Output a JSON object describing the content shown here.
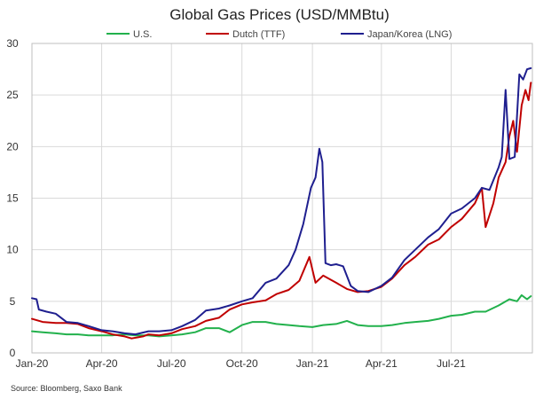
{
  "chart_data": {
    "type": "line",
    "title": "Global Gas Prices (USD/MMBtu)",
    "xlabel": "",
    "ylabel": "",
    "source": "Source: Bloomberg, Saxo Bank",
    "ylim": [
      0,
      30
    ],
    "yticks": [
      "0",
      "5",
      "10",
      "15",
      "20",
      "25",
      "30"
    ],
    "xlim": [
      "2020-01-01",
      "2021-10-15"
    ],
    "xticks": [
      {
        "date": "2020-01-01",
        "label": "Jan-20"
      },
      {
        "date": "2020-04-01",
        "label": "Apr-20"
      },
      {
        "date": "2020-07-01",
        "label": "Jul-20"
      },
      {
        "date": "2020-10-01",
        "label": "Oct-20"
      },
      {
        "date": "2021-01-01",
        "label": "Jan-21"
      },
      {
        "date": "2021-04-01",
        "label": "Apr-21"
      },
      {
        "date": "2021-07-01",
        "label": "Jul-21"
      }
    ],
    "grid": true,
    "legend": "top",
    "series": [
      {
        "name": "U.S.",
        "color": "#22b14c",
        "points": [
          [
            "2020-01-01",
            2.1
          ],
          [
            "2020-01-15",
            2.0
          ],
          [
            "2020-02-01",
            1.9
          ],
          [
            "2020-02-15",
            1.8
          ],
          [
            "2020-03-01",
            1.8
          ],
          [
            "2020-03-15",
            1.7
          ],
          [
            "2020-04-01",
            1.7
          ],
          [
            "2020-04-15",
            1.7
          ],
          [
            "2020-05-01",
            1.8
          ],
          [
            "2020-05-15",
            1.7
          ],
          [
            "2020-06-01",
            1.7
          ],
          [
            "2020-06-15",
            1.6
          ],
          [
            "2020-07-01",
            1.7
          ],
          [
            "2020-07-15",
            1.8
          ],
          [
            "2020-08-01",
            2.0
          ],
          [
            "2020-08-15",
            2.4
          ],
          [
            "2020-09-01",
            2.4
          ],
          [
            "2020-09-15",
            2.0
          ],
          [
            "2020-10-01",
            2.7
          ],
          [
            "2020-10-15",
            3.0
          ],
          [
            "2020-11-01",
            3.0
          ],
          [
            "2020-11-15",
            2.8
          ],
          [
            "2020-12-01",
            2.7
          ],
          [
            "2020-12-15",
            2.6
          ],
          [
            "2021-01-01",
            2.5
          ],
          [
            "2021-01-15",
            2.7
          ],
          [
            "2021-02-01",
            2.8
          ],
          [
            "2021-02-15",
            3.1
          ],
          [
            "2021-03-01",
            2.7
          ],
          [
            "2021-03-15",
            2.6
          ],
          [
            "2021-04-01",
            2.6
          ],
          [
            "2021-04-15",
            2.7
          ],
          [
            "2021-05-01",
            2.9
          ],
          [
            "2021-05-15",
            3.0
          ],
          [
            "2021-06-01",
            3.1
          ],
          [
            "2021-06-15",
            3.3
          ],
          [
            "2021-07-01",
            3.6
          ],
          [
            "2021-07-15",
            3.7
          ],
          [
            "2021-08-01",
            4.0
          ],
          [
            "2021-08-15",
            4.0
          ],
          [
            "2021-09-01",
            4.6
          ],
          [
            "2021-09-15",
            5.2
          ],
          [
            "2021-09-25",
            5.0
          ],
          [
            "2021-10-01",
            5.6
          ],
          [
            "2021-10-08",
            5.2
          ],
          [
            "2021-10-13",
            5.5
          ]
        ]
      },
      {
        "name": "Dutch (TTF)",
        "color": "#c00000",
        "points": [
          [
            "2020-01-01",
            3.3
          ],
          [
            "2020-01-15",
            3.0
          ],
          [
            "2020-02-01",
            2.9
          ],
          [
            "2020-02-15",
            2.9
          ],
          [
            "2020-03-01",
            2.8
          ],
          [
            "2020-03-15",
            2.4
          ],
          [
            "2020-04-01",
            2.1
          ],
          [
            "2020-04-15",
            1.8
          ],
          [
            "2020-05-01",
            1.6
          ],
          [
            "2020-05-10",
            1.4
          ],
          [
            "2020-05-25",
            1.6
          ],
          [
            "2020-06-01",
            1.8
          ],
          [
            "2020-06-15",
            1.7
          ],
          [
            "2020-07-01",
            1.9
          ],
          [
            "2020-07-15",
            2.3
          ],
          [
            "2020-08-01",
            2.6
          ],
          [
            "2020-08-15",
            3.1
          ],
          [
            "2020-09-01",
            3.4
          ],
          [
            "2020-09-15",
            4.2
          ],
          [
            "2020-10-01",
            4.7
          ],
          [
            "2020-10-15",
            4.9
          ],
          [
            "2020-11-01",
            5.1
          ],
          [
            "2020-11-15",
            5.7
          ],
          [
            "2020-12-01",
            6.1
          ],
          [
            "2020-12-15",
            7.0
          ],
          [
            "2020-12-28",
            9.3
          ],
          [
            "2021-01-05",
            6.8
          ],
          [
            "2021-01-15",
            7.5
          ],
          [
            "2021-02-01",
            6.8
          ],
          [
            "2021-02-15",
            6.2
          ],
          [
            "2021-03-01",
            5.9
          ],
          [
            "2021-03-15",
            6.0
          ],
          [
            "2021-04-01",
            6.4
          ],
          [
            "2021-04-15",
            7.2
          ],
          [
            "2021-05-01",
            8.5
          ],
          [
            "2021-05-15",
            9.3
          ],
          [
            "2021-06-01",
            10.5
          ],
          [
            "2021-06-15",
            11.0
          ],
          [
            "2021-07-01",
            12.2
          ],
          [
            "2021-07-15",
            13.0
          ],
          [
            "2021-08-01",
            14.5
          ],
          [
            "2021-08-10",
            16.0
          ],
          [
            "2021-08-15",
            12.2
          ],
          [
            "2021-08-25",
            14.5
          ],
          [
            "2021-09-01",
            17.0
          ],
          [
            "2021-09-10",
            18.5
          ],
          [
            "2021-09-15",
            21.0
          ],
          [
            "2021-09-20",
            22.5
          ],
          [
            "2021-09-25",
            19.5
          ],
          [
            "2021-10-01",
            24.0
          ],
          [
            "2021-10-06",
            25.5
          ],
          [
            "2021-10-10",
            24.5
          ],
          [
            "2021-10-13",
            26.2
          ]
        ]
      },
      {
        "name": "Japan/Korea (LNG)",
        "color": "#1f1f8f",
        "points": [
          [
            "2020-01-01",
            5.3
          ],
          [
            "2020-01-07",
            5.2
          ],
          [
            "2020-01-10",
            4.2
          ],
          [
            "2020-01-20",
            4.0
          ],
          [
            "2020-02-01",
            3.8
          ],
          [
            "2020-02-15",
            3.0
          ],
          [
            "2020-03-01",
            2.9
          ],
          [
            "2020-03-15",
            2.6
          ],
          [
            "2020-04-01",
            2.2
          ],
          [
            "2020-04-15",
            2.1
          ],
          [
            "2020-05-01",
            1.9
          ],
          [
            "2020-05-15",
            1.8
          ],
          [
            "2020-06-01",
            2.1
          ],
          [
            "2020-06-15",
            2.1
          ],
          [
            "2020-07-01",
            2.2
          ],
          [
            "2020-07-15",
            2.6
          ],
          [
            "2020-08-01",
            3.2
          ],
          [
            "2020-08-15",
            4.1
          ],
          [
            "2020-09-01",
            4.3
          ],
          [
            "2020-09-15",
            4.6
          ],
          [
            "2020-10-01",
            5.0
          ],
          [
            "2020-10-15",
            5.3
          ],
          [
            "2020-11-01",
            6.8
          ],
          [
            "2020-11-15",
            7.2
          ],
          [
            "2020-12-01",
            8.5
          ],
          [
            "2020-12-10",
            10.0
          ],
          [
            "2020-12-20",
            12.5
          ],
          [
            "2020-12-30",
            16.0
          ],
          [
            "2021-01-05",
            17.0
          ],
          [
            "2021-01-10",
            19.8
          ],
          [
            "2021-01-14",
            18.5
          ],
          [
            "2021-01-18",
            8.7
          ],
          [
            "2021-01-25",
            8.5
          ],
          [
            "2021-02-01",
            8.6
          ],
          [
            "2021-02-10",
            8.4
          ],
          [
            "2021-02-20",
            6.5
          ],
          [
            "2021-03-01",
            6.0
          ],
          [
            "2021-03-15",
            5.9
          ],
          [
            "2021-04-01",
            6.5
          ],
          [
            "2021-04-15",
            7.3
          ],
          [
            "2021-05-01",
            9.0
          ],
          [
            "2021-05-15",
            10.0
          ],
          [
            "2021-06-01",
            11.2
          ],
          [
            "2021-06-15",
            12.0
          ],
          [
            "2021-07-01",
            13.5
          ],
          [
            "2021-07-15",
            14.0
          ],
          [
            "2021-08-01",
            15.0
          ],
          [
            "2021-08-10",
            16.0
          ],
          [
            "2021-08-20",
            15.8
          ],
          [
            "2021-09-01",
            18.0
          ],
          [
            "2021-09-05",
            19.0
          ],
          [
            "2021-09-10",
            25.5
          ],
          [
            "2021-09-15",
            18.8
          ],
          [
            "2021-09-22",
            19.0
          ],
          [
            "2021-09-28",
            27.0
          ],
          [
            "2021-10-03",
            26.5
          ],
          [
            "2021-10-08",
            27.5
          ],
          [
            "2021-10-13",
            27.6
          ]
        ]
      }
    ]
  }
}
